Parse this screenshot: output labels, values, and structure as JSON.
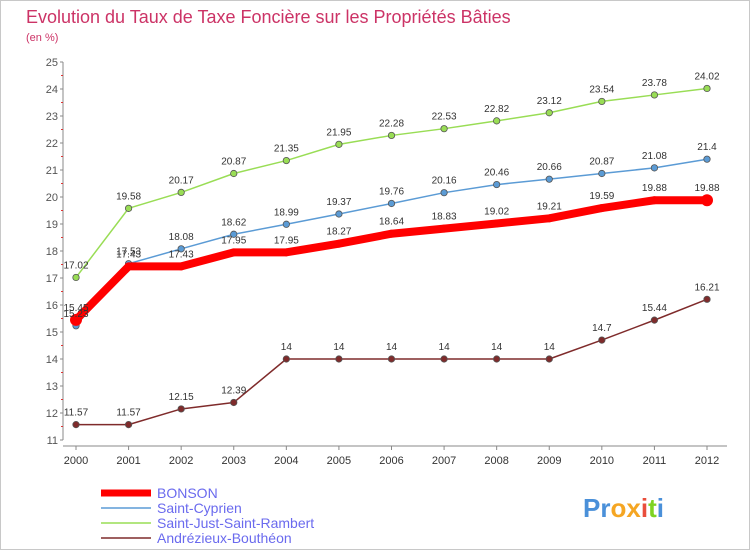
{
  "chart_data": {
    "type": "line",
    "title": "Evolution du Taux de Taxe Foncière sur les Propriétés Bâties",
    "unit_label": "(en %)",
    "x": [
      "2000",
      "2001",
      "2002",
      "2003",
      "2004",
      "2005",
      "2006",
      "2007",
      "2008",
      "2009",
      "2010",
      "2011",
      "2012"
    ],
    "ylim": [
      11,
      25
    ],
    "yticks": [
      "11",
      "12",
      "13",
      "14",
      "15",
      "16",
      "17",
      "18",
      "19",
      "20",
      "21",
      "22",
      "23",
      "24",
      "25"
    ],
    "grid": false,
    "legend_position": "bottom-left",
    "series": [
      {
        "name": "BONSON",
        "color": "#ff0000",
        "values": [
          15.45,
          17.43,
          17.43,
          17.95,
          17.95,
          18.27,
          18.64,
          18.83,
          19.02,
          19.21,
          19.59,
          19.88,
          19.88
        ],
        "labels": [
          "15.45",
          "17.43",
          "17.43",
          "17.95",
          "17.95",
          "18.27",
          "18.64",
          "18.83",
          "19.02",
          "19.21",
          "19.59",
          "19.88",
          "19.88"
        ]
      },
      {
        "name": "Saint-Cyprien",
        "color": "#5b9bd5",
        "values": [
          15.23,
          17.53,
          18.08,
          18.62,
          18.99,
          19.37,
          19.76,
          20.16,
          20.46,
          20.66,
          20.87,
          21.08,
          21.4
        ],
        "labels": [
          "15.23",
          "17.53",
          "18.08",
          "18.62",
          "18.99",
          "19.37",
          "19.76",
          "20.16",
          "20.46",
          "20.66",
          "20.87",
          "21.08",
          "21.4"
        ]
      },
      {
        "name": "Saint-Just-Saint-Rambert",
        "color": "#99dd55",
        "values": [
          17.02,
          19.58,
          20.17,
          20.87,
          21.35,
          21.95,
          22.28,
          22.53,
          22.82,
          23.12,
          23.54,
          23.78,
          24.02
        ],
        "labels": [
          "17.02",
          "19.58",
          "20.17",
          "20.87",
          "21.35",
          "21.95",
          "22.28",
          "22.53",
          "22.82",
          "23.12",
          "23.54",
          "23.78",
          "24.02"
        ]
      },
      {
        "name": "Andrézieux-Bouthéon",
        "color": "#7f2b2b",
        "values": [
          11.57,
          11.57,
          12.15,
          12.39,
          14,
          14,
          14,
          14,
          14,
          14,
          14.7,
          15.44,
          16.21
        ],
        "labels": [
          "11.57",
          "11.57",
          "12.15",
          "12.39",
          "14",
          "14",
          "14",
          "14",
          "14",
          "14",
          "14.7",
          "15.44",
          "16.21"
        ]
      }
    ]
  },
  "logo": {
    "text": "Proxiti"
  }
}
